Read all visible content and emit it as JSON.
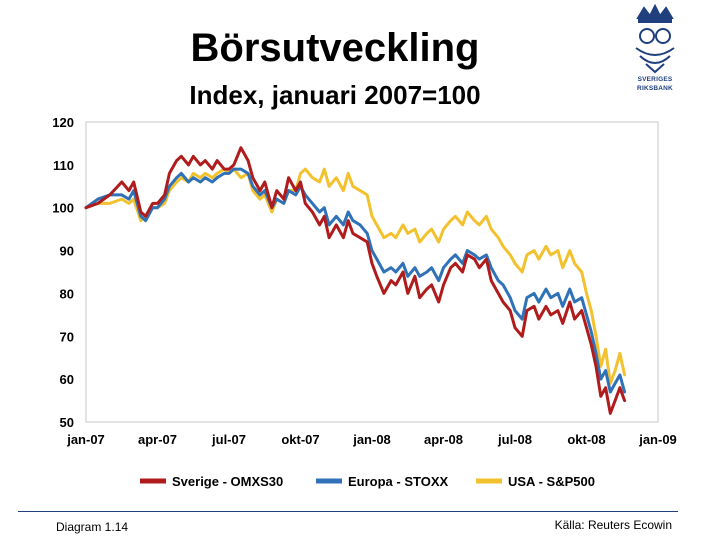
{
  "slide": {
    "footer_left": "Diagram 1.14",
    "footer_right": "Källa: Reuters Ecowin",
    "logo_text_1": "SVERIGES",
    "logo_text_2": "RIKSBANK",
    "accent_color": "#1f3f7f"
  },
  "chart_data": {
    "type": "line",
    "title": "Börsutveckling",
    "subtitle": "Index, januari 2007=100",
    "xlabel": "",
    "ylabel": "",
    "ylim": [
      50,
      120
    ],
    "yticks": [
      50,
      60,
      70,
      80,
      90,
      100,
      110,
      120
    ],
    "ytick_labels": [
      "50",
      "60",
      "70",
      "80",
      "90",
      "100",
      "110",
      "120"
    ],
    "x_ticks": [
      0,
      3,
      6,
      9,
      12,
      15,
      18,
      21,
      24
    ],
    "x_tick_labels": [
      "jan-07",
      "apr-07",
      "jul-07",
      "okt-07",
      "jan-08",
      "apr-08",
      "jul-08",
      "okt-08",
      "jan-09"
    ],
    "x_unit": "months since jan-07",
    "xlim": [
      0,
      24
    ],
    "grid": false,
    "legend_position": "bottom",
    "series": [
      {
        "name": "Sverige - OMXS30",
        "color": "#b01c1c",
        "x": [
          0,
          0.5,
          1,
          1.5,
          1.8,
          2,
          2.3,
          2.5,
          2.8,
          3,
          3.3,
          3.5,
          3.8,
          4,
          4.3,
          4.5,
          4.8,
          5,
          5.3,
          5.5,
          5.8,
          6,
          6.2,
          6.5,
          6.8,
          7,
          7.3,
          7.5,
          7.8,
          8,
          8.3,
          8.5,
          8.8,
          9,
          9.2,
          9.5,
          9.8,
          10,
          10.2,
          10.5,
          10.8,
          11,
          11.2,
          11.5,
          11.8,
          12,
          12.2,
          12.5,
          12.8,
          13,
          13.3,
          13.5,
          13.8,
          14,
          14.3,
          14.5,
          14.8,
          15,
          15.3,
          15.5,
          15.8,
          16,
          16.3,
          16.5,
          16.8,
          17,
          17.3,
          17.5,
          17.8,
          18,
          18.3,
          18.5,
          18.8,
          19,
          19.3,
          19.5,
          19.8,
          20,
          20.3,
          20.5,
          20.8,
          21,
          21.2,
          21.4,
          21.6,
          21.8,
          22,
          22.2,
          22.4,
          22.6
        ],
        "values": [
          100,
          101,
          103,
          106,
          104,
          106,
          99,
          98,
          101,
          101,
          103,
          108,
          111,
          112,
          110,
          112,
          110,
          111,
          109,
          111,
          109,
          109,
          110,
          114,
          111,
          107,
          104,
          106,
          100,
          104,
          102,
          107,
          104,
          106,
          101,
          99,
          96,
          98,
          93,
          96,
          93,
          97,
          94,
          93,
          92,
          87,
          84,
          80,
          83,
          82,
          85,
          80,
          84,
          79,
          81,
          82,
          78,
          82,
          86,
          87,
          85,
          89,
          88,
          86,
          88,
          83,
          80,
          78,
          76,
          72,
          70,
          76,
          77,
          74,
          77,
          75,
          76,
          73,
          78,
          74,
          76,
          72,
          68,
          63,
          56,
          58,
          52,
          55,
          58,
          55
        ]
      },
      {
        "name": "Europa - STOXX",
        "color": "#2f72b8",
        "x": [
          0,
          0.5,
          1,
          1.5,
          1.8,
          2,
          2.3,
          2.5,
          2.8,
          3,
          3.3,
          3.5,
          3.8,
          4,
          4.3,
          4.5,
          4.8,
          5,
          5.3,
          5.5,
          5.8,
          6,
          6.2,
          6.5,
          6.8,
          7,
          7.3,
          7.5,
          7.8,
          8,
          8.3,
          8.5,
          8.8,
          9,
          9.2,
          9.5,
          9.8,
          10,
          10.2,
          10.5,
          10.8,
          11,
          11.2,
          11.5,
          11.8,
          12,
          12.2,
          12.5,
          12.8,
          13,
          13.3,
          13.5,
          13.8,
          14,
          14.3,
          14.5,
          14.8,
          15,
          15.3,
          15.5,
          15.8,
          16,
          16.3,
          16.5,
          16.8,
          17,
          17.3,
          17.5,
          17.8,
          18,
          18.3,
          18.5,
          18.8,
          19,
          19.3,
          19.5,
          19.8,
          20,
          20.3,
          20.5,
          20.8,
          21,
          21.2,
          21.4,
          21.6,
          21.8,
          22,
          22.2,
          22.4,
          22.6
        ],
        "values": [
          100,
          102,
          103,
          103,
          102,
          104,
          98,
          97,
          100,
          100,
          102,
          105,
          107,
          108,
          106,
          107,
          106,
          107,
          106,
          107,
          108,
          108,
          109,
          109,
          108,
          105,
          103,
          104,
          100,
          102,
          101,
          104,
          103,
          105,
          103,
          101,
          99,
          100,
          96,
          98,
          96,
          99,
          97,
          96,
          94,
          90,
          88,
          85,
          86,
          85,
          87,
          84,
          86,
          84,
          85,
          86,
          83,
          86,
          88,
          89,
          87,
          90,
          89,
          88,
          89,
          86,
          83,
          82,
          79,
          76,
          74,
          79,
          80,
          78,
          81,
          79,
          80,
          77,
          81,
          78,
          79,
          75,
          71,
          66,
          60,
          62,
          57,
          59,
          61,
          57
        ]
      },
      {
        "name": "USA - S&P500",
        "color": "#f2c12e",
        "x": [
          0,
          0.5,
          1,
          1.5,
          1.8,
          2,
          2.3,
          2.5,
          2.8,
          3,
          3.3,
          3.5,
          3.8,
          4,
          4.3,
          4.5,
          4.8,
          5,
          5.3,
          5.5,
          5.8,
          6,
          6.2,
          6.5,
          6.8,
          7,
          7.3,
          7.5,
          7.8,
          8,
          8.3,
          8.5,
          8.8,
          9,
          9.2,
          9.5,
          9.8,
          10,
          10.2,
          10.5,
          10.8,
          11,
          11.2,
          11.5,
          11.8,
          12,
          12.2,
          12.5,
          12.8,
          13,
          13.3,
          13.5,
          13.8,
          14,
          14.3,
          14.5,
          14.8,
          15,
          15.3,
          15.5,
          15.8,
          16,
          16.3,
          16.5,
          16.8,
          17,
          17.3,
          17.5,
          17.8,
          18,
          18.3,
          18.5,
          18.8,
          19,
          19.3,
          19.5,
          19.8,
          20,
          20.3,
          20.5,
          20.8,
          21,
          21.2,
          21.4,
          21.6,
          21.8,
          22,
          22.2,
          22.4,
          22.6
        ],
        "values": [
          100,
          101,
          101,
          102,
          101,
          102,
          97,
          98,
          100,
          100,
          101,
          104,
          106,
          107,
          106,
          108,
          107,
          108,
          107,
          108,
          109,
          108,
          109,
          107,
          108,
          104,
          102,
          103,
          99,
          102,
          101,
          104,
          104,
          108,
          109,
          107,
          106,
          109,
          105,
          107,
          104,
          108,
          105,
          104,
          103,
          98,
          96,
          93,
          94,
          93,
          96,
          94,
          95,
          92,
          94,
          95,
          92,
          95,
          97,
          98,
          96,
          99,
          97,
          96,
          98,
          95,
          93,
          91,
          89,
          87,
          85,
          89,
          90,
          88,
          91,
          89,
          90,
          86,
          90,
          87,
          85,
          80,
          76,
          70,
          63,
          67,
          59,
          62,
          66,
          61
        ]
      }
    ]
  }
}
